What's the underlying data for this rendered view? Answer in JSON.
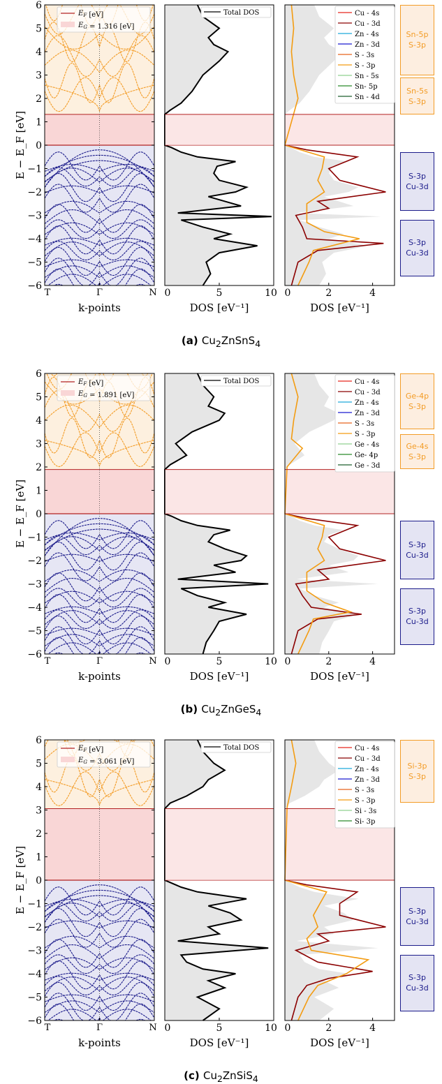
{
  "colors": {
    "valence": "#1b1b8a",
    "conduction": "#f39c26",
    "fermi": "#b22222",
    "gap_fill": "#f9d6d6",
    "vb_bg": "#e6e6f4",
    "cb_bg": "#fdf0df",
    "dos_fill": "#e6e6e6"
  },
  "chart_data": [
    {
      "type": "line",
      "title": "",
      "caption": {
        "tag": "(a)",
        "formula": "Cu2ZnSnS4"
      },
      "band_plot": {
        "xlabel": "k-points",
        "ylabel": "E − E_F  [eV]",
        "x_ticks": [
          "T",
          "Γ",
          "N"
        ],
        "ylim": [
          -6,
          6
        ],
        "y_ticks": [
          -6,
          -5,
          -4,
          -3,
          -2,
          -1,
          0,
          1,
          2,
          3,
          4,
          5,
          6
        ],
        "legend": [
          "E_F [eV]",
          "E_G = 1.316 [eV]"
        ],
        "legend_placement": "top-left",
        "band_gap_eV": 1.316
      },
      "dos_plot": {
        "xlabel": "DOS [eV⁻¹]",
        "xlim": [
          0,
          10
        ],
        "x_ticks": [
          0,
          5,
          10
        ],
        "legend": [
          "Total DOS"
        ],
        "legend_placement": "top-right",
        "total_dos": {
          "energy": [
            -6,
            -5.5,
            -5,
            -4.6,
            -4.3,
            -4.0,
            -3.8,
            -3.5,
            -3.2,
            -3.05,
            -2.9,
            -2.6,
            -2.2,
            -2.0,
            -1.8,
            -1.5,
            -1.2,
            -0.9,
            -0.7,
            -0.5,
            -0.3,
            -0.1,
            0,
            0.5,
            1.0,
            1.316,
            1.5,
            1.8,
            2.3,
            3.0,
            3.6,
            4.0,
            4.3,
            4.6,
            5.0,
            5.5,
            6.0
          ],
          "dos": [
            3.5,
            4.2,
            3.8,
            5.0,
            8.5,
            4.5,
            6.0,
            3.5,
            1.5,
            9.8,
            1.2,
            7.0,
            4.0,
            6.5,
            7.5,
            5.0,
            4.5,
            4.8,
            6.5,
            3.0,
            1.5,
            0.6,
            0.0,
            0.0,
            0.0,
            0.0,
            0.5,
            1.5,
            2.5,
            3.5,
            5.0,
            5.8,
            4.5,
            4.0,
            5.0,
            3.5,
            3.0
          ]
        }
      },
      "pdos_plot": {
        "xlabel": "DOS [eV⁻¹]",
        "xlim": [
          0,
          5
        ],
        "x_ticks": [
          0,
          2,
          4
        ],
        "legend": [
          "Cu - 4s",
          "Cu - 3d",
          "Zn - 4s",
          "Zn - 3d",
          "S - 3s",
          "S - 3p",
          "Sn - 5s",
          "Sn- 5p",
          "Sn - 4d"
        ],
        "series": [
          {
            "name": "Cu - 3d",
            "energy": [
              -6,
              -5,
              -4.5,
              -4.2,
              -4.0,
              -3.5,
              -3.0,
              -2.7,
              -2.4,
              -2.0,
              -1.5,
              -1.0,
              -0.5,
              -0.2,
              0
            ],
            "pdos": [
              0.3,
              0.6,
              1.5,
              4.5,
              1.0,
              0.8,
              0.5,
              2.0,
              1.5,
              4.6,
              2.5,
              2.0,
              3.3,
              1.0,
              0
            ]
          },
          {
            "name": "S - 3p",
            "energy": [
              -6,
              -5,
              -4.5,
              -4.0,
              -3.7,
              -3.3,
              -2.5,
              -2.0,
              -1.5,
              -1.0,
              -0.5,
              0,
              2,
              3,
              4,
              5,
              6
            ],
            "pdos": [
              0.6,
              1.1,
              1.3,
              3.4,
              1.8,
              1.0,
              1.0,
              1.8,
              1.5,
              1.7,
              1.8,
              0,
              0.6,
              0.4,
              0.3,
              0.4,
              0.3
            ]
          }
        ]
      },
      "labels": [
        {
          "text": "Sn-5p\nS-3p",
          "kind": "conduction",
          "range_eV": [
            3.0,
            6.0
          ]
        },
        {
          "text": "Sn-5s\nS-3p",
          "kind": "conduction",
          "range_eV": [
            1.3,
            2.9
          ]
        },
        {
          "text": "S-3p\nCu-3d",
          "kind": "valence",
          "range_eV": [
            -2.8,
            -0.3
          ]
        },
        {
          "text": "S-3p\nCu-3d",
          "kind": "valence",
          "range_eV": [
            -5.6,
            -3.2
          ]
        }
      ]
    },
    {
      "type": "line",
      "title": "",
      "caption": {
        "tag": "(b)",
        "formula": "Cu2ZnGeS4"
      },
      "band_plot": {
        "xlabel": "k-points",
        "ylabel": "E − E_F  [eV]",
        "x_ticks": [
          "T",
          "Γ",
          "N"
        ],
        "ylim": [
          -6,
          6
        ],
        "y_ticks": [
          -6,
          -5,
          -4,
          -3,
          -2,
          -1,
          0,
          1,
          2,
          3,
          4,
          5,
          6
        ],
        "legend": [
          "E_F [eV]",
          "E_G = 1.891 [eV]"
        ],
        "legend_placement": "top-left",
        "band_gap_eV": 1.891
      },
      "dos_plot": {
        "xlabel": "DOS [eV⁻¹]",
        "xlim": [
          0,
          10
        ],
        "x_ticks": [
          0,
          5,
          10
        ],
        "legend": [
          "Total DOS"
        ],
        "legend_placement": "top-right",
        "total_dos": {
          "energy": [
            -6,
            -5.5,
            -5,
            -4.6,
            -4.3,
            -4.0,
            -3.8,
            -3.5,
            -3.2,
            -3.0,
            -2.8,
            -2.5,
            -2.2,
            -2.0,
            -1.8,
            -1.5,
            -1.2,
            -0.9,
            -0.7,
            -0.5,
            -0.3,
            -0.1,
            0,
            1.0,
            1.891,
            2.1,
            2.5,
            3.0,
            3.5,
            4.0,
            4.3,
            4.6,
            5.0,
            5.5,
            6.0
          ],
          "dos": [
            3.5,
            3.8,
            4.5,
            5.0,
            7.5,
            4.0,
            5.5,
            3.0,
            1.5,
            9.5,
            1.2,
            6.5,
            4.5,
            7.0,
            7.5,
            5.5,
            4.0,
            4.5,
            6.0,
            3.0,
            1.5,
            0.6,
            0.0,
            0.0,
            0.0,
            0.5,
            2.0,
            1.0,
            2.5,
            5.0,
            5.5,
            4.0,
            4.5,
            3.5,
            3.0
          ]
        }
      },
      "pdos_plot": {
        "xlabel": "DOS [eV⁻¹]",
        "xlim": [
          0,
          5
        ],
        "x_ticks": [
          0,
          2,
          4
        ],
        "legend": [
          "Cu - 4s",
          "Cu - 3d",
          "Zn - 4s",
          "Zn - 3d",
          "S - 3s",
          "S - 3p",
          "Ge - 4s",
          "Ge- 4p",
          "Ge - 3d"
        ],
        "series": [
          {
            "name": "Cu - 3d",
            "energy": [
              -6,
              -5,
              -4.5,
              -4.3,
              -4.0,
              -3.5,
              -3.0,
              -2.8,
              -2.4,
              -2.0,
              -1.5,
              -1.0,
              -0.5,
              -0.2,
              0
            ],
            "pdos": [
              0.3,
              0.6,
              1.5,
              3.5,
              1.2,
              0.8,
              0.5,
              2.0,
              1.5,
              4.6,
              2.5,
              2.0,
              3.3,
              1.0,
              0
            ]
          },
          {
            "name": "S - 3p",
            "energy": [
              -6,
              -5,
              -4.5,
              -4.2,
              -3.8,
              -3.3,
              -2.5,
              -2.0,
              -1.5,
              -1.0,
              -0.5,
              0,
              2,
              2.8,
              3.2,
              4,
              5,
              6
            ],
            "pdos": [
              0.6,
              1.1,
              1.3,
              3.0,
              1.8,
              1.0,
              1.0,
              1.8,
              1.5,
              1.7,
              1.8,
              0,
              0.1,
              0.8,
              0.3,
              0.4,
              0.6,
              0.3
            ]
          }
        ]
      },
      "labels": [
        {
          "text": "Ge-4p\nS-3p",
          "kind": "conduction",
          "range_eV": [
            3.6,
            6.0
          ]
        },
        {
          "text": "Ge-4s\nS-3p",
          "kind": "conduction",
          "range_eV": [
            1.9,
            3.4
          ]
        },
        {
          "text": "S-3p\nCu-3d",
          "kind": "valence",
          "range_eV": [
            -2.8,
            -0.3
          ]
        },
        {
          "text": "S-3p\nCu-3d",
          "kind": "valence",
          "range_eV": [
            -5.6,
            -3.2
          ]
        }
      ]
    },
    {
      "type": "line",
      "title": "",
      "caption": {
        "tag": "(c)",
        "formula": "Cu2ZnSiS4"
      },
      "band_plot": {
        "xlabel": "k-points",
        "ylabel": "E − E_F  [eV]",
        "x_ticks": [
          "T",
          "Γ",
          "N"
        ],
        "ylim": [
          -6,
          6
        ],
        "y_ticks": [
          -6,
          -5,
          -4,
          -3,
          -2,
          -1,
          0,
          1,
          2,
          3,
          4,
          5,
          6
        ],
        "legend": [
          "E_F [eV]",
          "E_G = 3.061 [eV]"
        ],
        "legend_placement": "top-left",
        "band_gap_eV": 3.061
      },
      "dos_plot": {
        "xlabel": "DOS [eV⁻¹]",
        "xlim": [
          0,
          10
        ],
        "x_ticks": [
          0,
          5,
          10
        ],
        "legend": [
          "Total DOS"
        ],
        "legend_placement": "top-right",
        "total_dos": {
          "energy": [
            -6,
            -5.5,
            -5,
            -4.6,
            -4.3,
            -4.0,
            -3.8,
            -3.5,
            -3.2,
            -2.9,
            -2.6,
            -2.3,
            -2.0,
            -1.7,
            -1.4,
            -1.1,
            -0.8,
            -0.5,
            -0.3,
            -0.1,
            0,
            1.5,
            3.061,
            3.3,
            3.6,
            4.0,
            4.3,
            4.7,
            5.0,
            5.5,
            6.0
          ],
          "dos": [
            3.5,
            5.0,
            3.0,
            5.5,
            4.0,
            6.5,
            3.5,
            2.0,
            1.5,
            9.5,
            1.2,
            5.0,
            4.0,
            7.0,
            6.0,
            4.0,
            7.5,
            3.0,
            1.5,
            0.5,
            0.0,
            0.0,
            0.0,
            0.5,
            2.0,
            3.5,
            4.0,
            5.5,
            4.5,
            3.5,
            3.0
          ]
        }
      },
      "pdos_plot": {
        "xlabel": "DOS [eV⁻¹]",
        "xlim": [
          0,
          5
        ],
        "x_ticks": [
          0,
          2,
          4
        ],
        "legend": [
          "Cu - 4s",
          "Cu - 3d",
          "Zn - 4s",
          "Zn - 3d",
          "S - 3s",
          "S - 3p",
          "Si - 3s",
          "Si- 3p"
        ],
        "series": [
          {
            "name": "Cu - 3d",
            "energy": [
              -6,
              -5,
              -4.5,
              -4.2,
              -3.9,
              -3.5,
              -3.0,
              -2.6,
              -2.3,
              -2.0,
              -1.5,
              -1.0,
              -0.5,
              -0.2,
              0
            ],
            "pdos": [
              0.3,
              0.6,
              1.0,
              2.0,
              4.0,
              1.5,
              0.5,
              2.0,
              1.5,
              4.6,
              2.5,
              2.5,
              3.3,
              1.0,
              0
            ]
          },
          {
            "name": "S - 3p",
            "energy": [
              -6,
              -5,
              -4.5,
              -4.0,
              -3.4,
              -3.0,
              -2.5,
              -2.0,
              -1.5,
              -1.0,
              -0.5,
              0,
              3.1,
              4,
              5,
              6
            ],
            "pdos": [
              0.6,
              1.1,
              1.5,
              2.8,
              3.8,
              1.2,
              1.0,
              1.5,
              1.3,
              1.6,
              1.9,
              0,
              0.1,
              0.3,
              0.5,
              0.3
            ]
          }
        ]
      },
      "labels": [
        {
          "text": "Si-3p\nS-3p",
          "kind": "conduction",
          "range_eV": [
            3.3,
            6.0
          ]
        },
        {
          "text": "S-3p\nCu-3d",
          "kind": "valence",
          "range_eV": [
            -2.8,
            -0.3
          ]
        },
        {
          "text": "S-3p\nCu-3d",
          "kind": "valence",
          "range_eV": [
            -5.6,
            -3.2
          ]
        }
      ]
    }
  ]
}
